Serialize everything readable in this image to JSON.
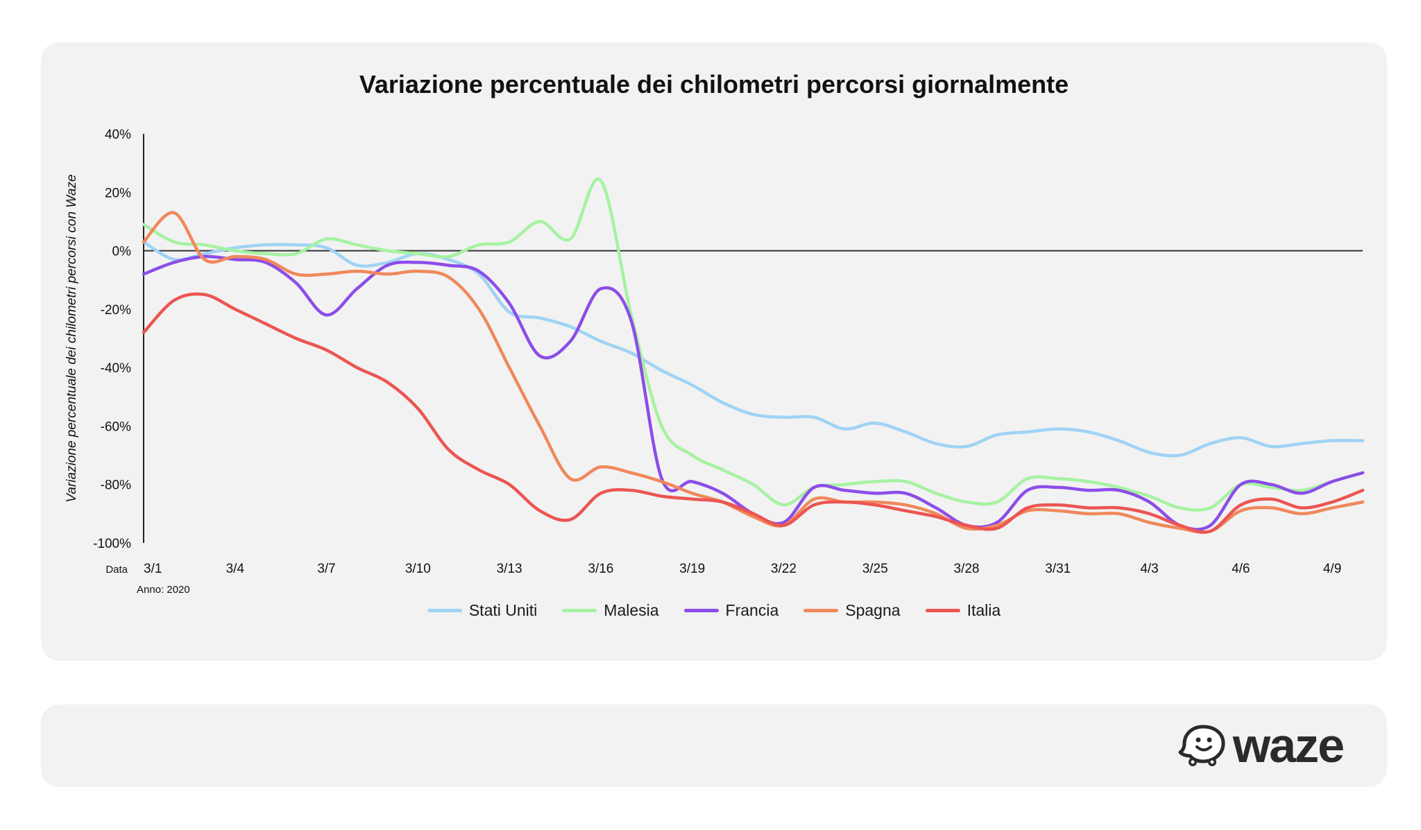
{
  "chart_data": {
    "type": "line",
    "title": "Variazione percentuale dei chilometri percorsi giornalmente",
    "xlabel_prefix": "Data",
    "ylabel": "Variazione percentuale dei chilometri percorsi con Waze",
    "year_note": "Anno: 2020",
    "ylim": [
      -100,
      40
    ],
    "yticks": [
      "40%",
      "20%",
      "0%",
      "-20%",
      "-40%",
      "-60%",
      "-80%",
      "-100%"
    ],
    "ytick_values": [
      40,
      20,
      0,
      -20,
      -40,
      -60,
      -80,
      -100
    ],
    "x_dates": [
      "3/1",
      "3/2",
      "3/3",
      "3/4",
      "3/5",
      "3/6",
      "3/7",
      "3/8",
      "3/9",
      "3/10",
      "3/11",
      "3/12",
      "3/13",
      "3/14",
      "3/15",
      "3/16",
      "3/17",
      "3/18",
      "3/19",
      "3/20",
      "3/21",
      "3/22",
      "3/23",
      "3/24",
      "3/25",
      "3/26",
      "3/27",
      "3/28",
      "3/29",
      "3/30",
      "3/31",
      "4/1",
      "4/2",
      "4/3",
      "4/4",
      "4/5",
      "4/6",
      "4/7",
      "4/8",
      "4/9",
      "4/10"
    ],
    "xtick_labels": [
      "3/1",
      "3/4",
      "3/7",
      "3/10",
      "3/13",
      "3/16",
      "3/19",
      "3/22",
      "3/25",
      "3/28",
      "3/31",
      "4/3",
      "4/6",
      "4/9"
    ],
    "xtick_indices": [
      0,
      3,
      6,
      9,
      12,
      15,
      18,
      21,
      24,
      27,
      30,
      33,
      36,
      39
    ],
    "grid": false,
    "zero_line": true,
    "legend_position": "bottom",
    "series": [
      {
        "name": "Stati Uniti",
        "color": "#9fd3f5",
        "values": [
          3,
          -3,
          -1,
          1,
          2,
          2,
          1,
          -5,
          -4,
          -1,
          -3,
          -8,
          -21,
          -23,
          -26,
          -31,
          -35,
          -41,
          -46,
          -52,
          -56,
          -57,
          -57,
          -61,
          -59,
          -62,
          -66,
          -67,
          -63,
          -62,
          -61,
          -62,
          -65,
          -69,
          -70,
          -66,
          -64,
          -67,
          -66,
          -65,
          -65
        ]
      },
      {
        "name": "Malesia",
        "color": "#a6f2a2",
        "values": [
          9,
          3,
          2,
          0,
          -1,
          -1,
          4,
          2,
          0,
          -1,
          -2,
          2,
          3,
          10,
          4,
          24,
          -22,
          -60,
          -70,
          -75,
          -80,
          -87,
          -81,
          -80,
          -79,
          -79,
          -83,
          -86,
          -86,
          -78,
          -78,
          -79,
          -81,
          -84,
          -88,
          -88,
          -80,
          -81,
          -82,
          -79,
          -76
        ]
      },
      {
        "name": "Francia",
        "color": "#8c4de8",
        "values": [
          -8,
          -4,
          -2,
          -3,
          -4,
          -11,
          -22,
          -13,
          -5,
          -4,
          -5,
          -7,
          -18,
          -36,
          -31,
          -13,
          -24,
          -78,
          -79,
          -83,
          -90,
          -93,
          -81,
          -82,
          -83,
          -83,
          -88,
          -94,
          -93,
          -82,
          -81,
          -82,
          -82,
          -86,
          -94,
          -94,
          -80,
          -80,
          -83,
          -79,
          -76
        ]
      },
      {
        "name": "Spagna",
        "color": "#f0885b",
        "values": [
          3,
          13,
          -3,
          -2,
          -3,
          -8,
          -8,
          -7,
          -8,
          -7,
          -9,
          -20,
          -40,
          -60,
          -78,
          -74,
          -76,
          -79,
          -83,
          -86,
          -91,
          -94,
          -85,
          -86,
          -86,
          -87,
          -90,
          -95,
          -94,
          -89,
          -89,
          -90,
          -90,
          -93,
          -95,
          -96,
          -89,
          -88,
          -90,
          -88,
          -86
        ]
      },
      {
        "name": "Italia",
        "color": "#ec5552",
        "values": [
          -28,
          -17,
          -15,
          -20,
          -25,
          -30,
          -34,
          -40,
          -45,
          -54,
          -68,
          -75,
          -80,
          -89,
          -92,
          -83,
          -82,
          -84,
          -85,
          -86,
          -90,
          -94,
          -87,
          -86,
          -87,
          -89,
          -91,
          -94,
          -95,
          -88,
          -87,
          -88,
          -88,
          -90,
          -94,
          -96,
          -87,
          -85,
          -88,
          -86,
          -82
        ]
      }
    ]
  },
  "footer": {
    "logo_text": "waze",
    "logo_icon": "waze-smiley-icon"
  }
}
